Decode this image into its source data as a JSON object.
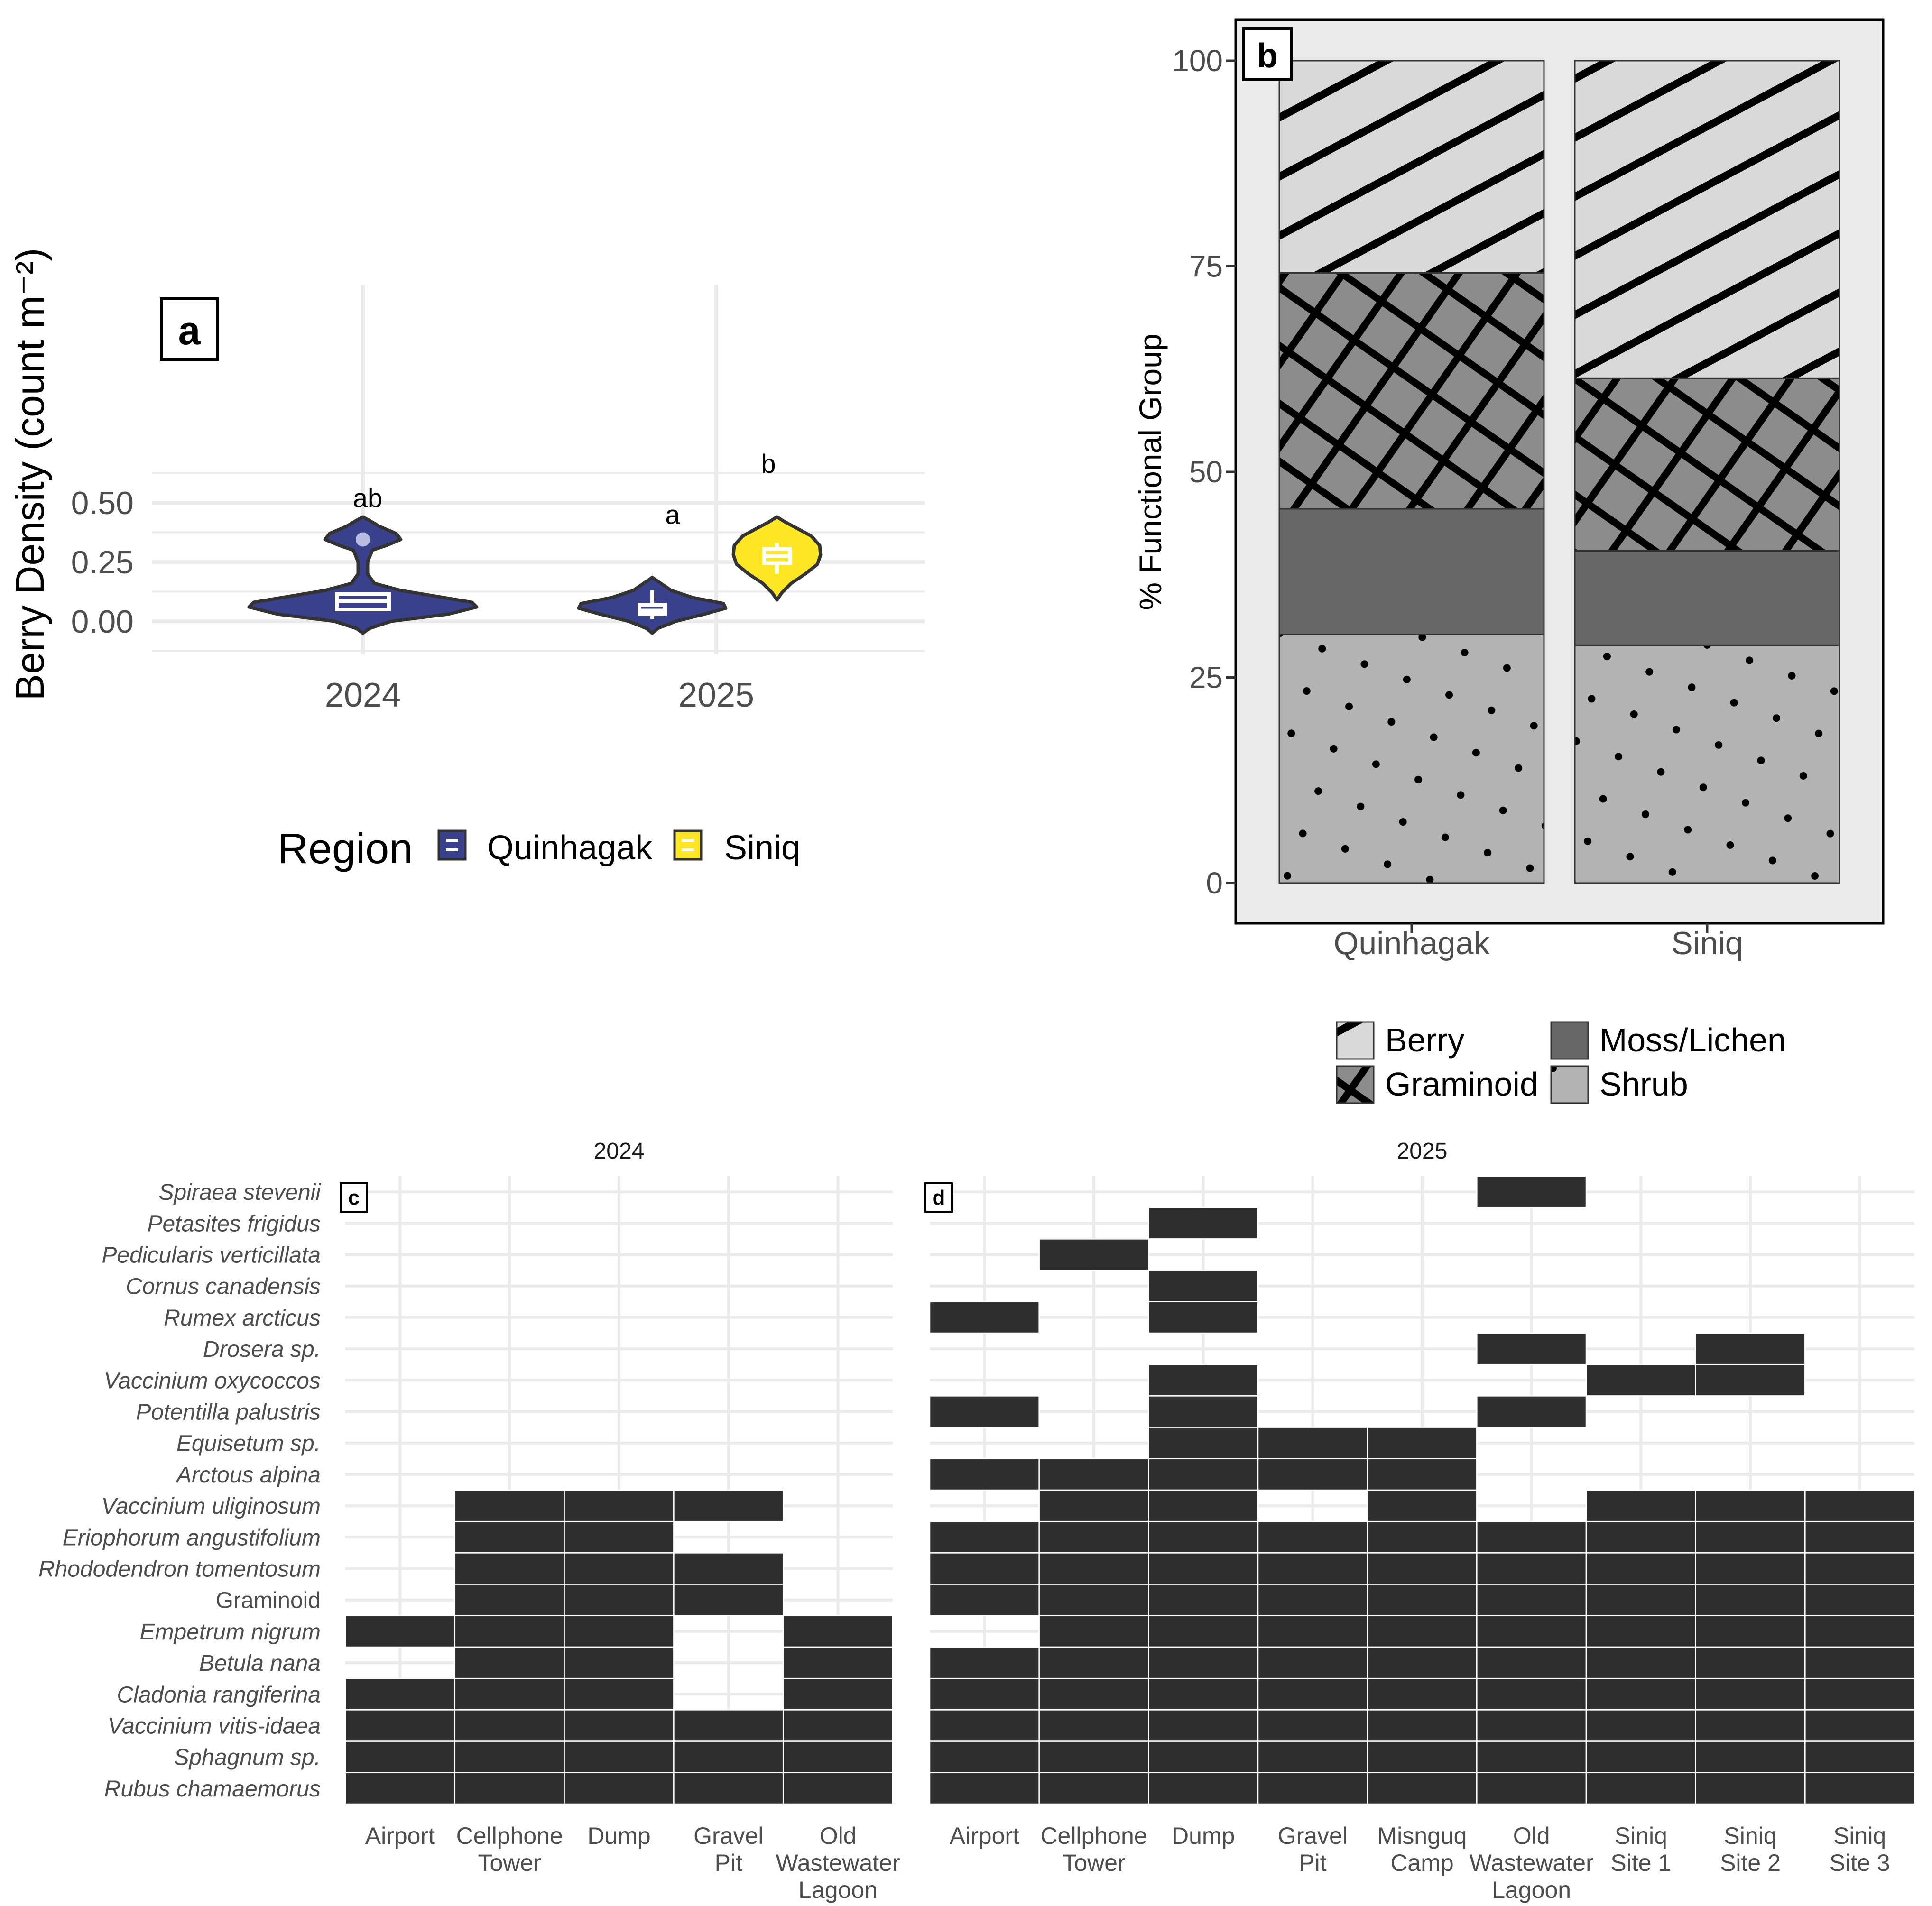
{
  "chart_data": [
    {
      "panel": "a",
      "type": "violin",
      "ylabel": "Berry Density (count m⁻²)",
      "xlabel": "",
      "categories": [
        "2024",
        "2025"
      ],
      "ylim": [
        -0.08,
        0.72
      ],
      "yticks": [
        0.0,
        0.25,
        0.5
      ],
      "ytick_labels": [
        "0.00",
        "0.25",
        "0.50"
      ],
      "grid": true,
      "legend": {
        "title": "Region",
        "position": "bottom",
        "entries": [
          "Quinhagak",
          "Siniq"
        ]
      },
      "colors": {
        "Quinhagak": "#39408c",
        "Siniq": "#fde725",
        "outline": "#333333"
      },
      "groups": [
        {
          "year": "2024",
          "region": "Quinhagak",
          "min": -0.05,
          "max": 0.44,
          "q1": 0.05,
          "median": 0.085,
          "q3": 0.115,
          "whisker_low": 0.05,
          "whisker_high": 0.115,
          "outliers": [
            0.345
          ],
          "letter": "ab",
          "letter_y": 0.525
        },
        {
          "year": "2025",
          "region": "Quinhagak",
          "min": -0.05,
          "max": 0.19,
          "q1": 0.03,
          "median": 0.045,
          "q3": 0.07,
          "whisker_low": 0.01,
          "whisker_high": 0.13,
          "outliers": [],
          "letter": "a",
          "letter_y": 0.455
        },
        {
          "year": "2025",
          "region": "Siniq",
          "min": 0.09,
          "max": 0.44,
          "q1": 0.245,
          "median": 0.275,
          "q3": 0.305,
          "whisker_low": 0.2,
          "whisker_high": 0.33,
          "outliers": [],
          "letter": "b",
          "letter_y": 0.67
        }
      ]
    },
    {
      "panel": "b",
      "type": "bar",
      "stacked": true,
      "ylabel": "% Functional Group",
      "xlabel": "",
      "categories": [
        "Quinhagak",
        "Siniq"
      ],
      "ylim": [
        0,
        100
      ],
      "yticks": [
        0,
        25,
        50,
        75,
        100
      ],
      "series": [
        {
          "name": "Shrub",
          "values": [
            30.2,
            28.9
          ],
          "pattern": "dots",
          "fill": "#b3b3b3"
        },
        {
          "name": "Moss/Lichen",
          "values": [
            15.3,
            11.5
          ],
          "pattern": "none",
          "fill": "#666666"
        },
        {
          "name": "Graminoid",
          "values": [
            28.7,
            21.0
          ],
          "pattern": "crosshatch",
          "fill": "#8c8c8c"
        },
        {
          "name": "Berry",
          "values": [
            25.8,
            38.6
          ],
          "pattern": "stripes",
          "fill": "#d9d9d9"
        }
      ],
      "legend": {
        "position": "bottom",
        "entries": [
          "Berry",
          "Moss/Lichen",
          "Graminoid",
          "Shrub"
        ]
      }
    },
    {
      "panel": "c",
      "type": "heatmap",
      "title": "2024",
      "categories": [
        "Airport",
        "Cellphone Tower",
        "Dump",
        "Gravel Pit",
        "Old Wastewater Lagoon"
      ],
      "category_lines": [
        [
          "Airport"
        ],
        [
          "Cellphone",
          "Tower"
        ],
        [
          "Dump"
        ],
        [
          "Gravel",
          "Pit"
        ],
        [
          "Old",
          "Wastewater",
          "Lagoon"
        ]
      ],
      "presence": {
        "Vaccinium uliginosum": [
          "Cellphone Tower",
          "Dump",
          "Gravel Pit"
        ],
        "Eriophorum angustifolium": [
          "Cellphone Tower",
          "Dump"
        ],
        "Rhododendron tomentosum": [
          "Cellphone Tower",
          "Dump",
          "Gravel Pit"
        ],
        "Graminoid": [
          "Cellphone Tower",
          "Dump",
          "Gravel Pit"
        ],
        "Empetrum nigrum": [
          "Airport",
          "Cellphone Tower",
          "Dump",
          "Old Wastewater Lagoon"
        ],
        "Betula nana": [
          "Cellphone Tower",
          "Dump",
          "Old Wastewater Lagoon"
        ],
        "Cladonia rangiferina": [
          "Airport",
          "Cellphone Tower",
          "Dump",
          "Old Wastewater Lagoon"
        ],
        "Vaccinium vitis-idaea": [
          "Airport",
          "Cellphone Tower",
          "Dump",
          "Gravel Pit",
          "Old Wastewater Lagoon"
        ],
        "Sphagnum sp.": [
          "Airport",
          "Cellphone Tower",
          "Dump",
          "Gravel Pit",
          "Old Wastewater Lagoon"
        ],
        "Rubus chamaemorus": [
          "Airport",
          "Cellphone Tower",
          "Dump",
          "Gravel Pit",
          "Old Wastewater Lagoon"
        ]
      }
    },
    {
      "panel": "d",
      "type": "heatmap",
      "title": "2025",
      "categories": [
        "Airport",
        "Cellphone Tower",
        "Dump",
        "Gravel Pit",
        "Misnguq Camp",
        "Old Wastewater Lagoon",
        "Siniq Site 1",
        "Siniq Site 2",
        "Siniq Site 3"
      ],
      "category_lines": [
        [
          "Airport"
        ],
        [
          "Cellphone",
          "Tower"
        ],
        [
          "Dump"
        ],
        [
          "Gravel",
          "Pit"
        ],
        [
          "Misnguq",
          "Camp"
        ],
        [
          "Old",
          "Wastewater",
          "Lagoon"
        ],
        [
          "Siniq",
          "Site 1"
        ],
        [
          "Siniq",
          "Site 2"
        ],
        [
          "Siniq",
          "Site 3"
        ]
      ],
      "presence": {
        "Spiraea stevenii": [
          "Old Wastewater Lagoon"
        ],
        "Petasites frigidus": [
          "Dump"
        ],
        "Pedicularis verticillata": [
          "Cellphone Tower"
        ],
        "Cornus canadensis": [
          "Dump"
        ],
        "Rumex arcticus": [
          "Airport",
          "Dump"
        ],
        "Drosera sp.": [
          "Old Wastewater Lagoon",
          "Siniq Site 2"
        ],
        "Vaccinium oxycoccos": [
          "Dump",
          "Siniq Site 1",
          "Siniq Site 2"
        ],
        "Potentilla palustris": [
          "Airport",
          "Dump",
          "Old Wastewater Lagoon"
        ],
        "Equisetum sp.": [
          "Dump",
          "Gravel Pit",
          "Misnguq Camp"
        ],
        "Arctous alpina": [
          "Airport",
          "Cellphone Tower",
          "Dump",
          "Gravel Pit",
          "Misnguq Camp"
        ],
        "Vaccinium uliginosum": [
          "Cellphone Tower",
          "Dump",
          "Misnguq Camp",
          "Siniq Site 1",
          "Siniq Site 2",
          "Siniq Site 3"
        ],
        "Eriophorum angustifolium": [
          "Airport",
          "Cellphone Tower",
          "Dump",
          "Gravel Pit",
          "Misnguq Camp",
          "Old Wastewater Lagoon",
          "Siniq Site 1",
          "Siniq Site 2",
          "Siniq Site 3"
        ],
        "Rhododendron tomentosum": [
          "Airport",
          "Cellphone Tower",
          "Dump",
          "Gravel Pit",
          "Misnguq Camp",
          "Old Wastewater Lagoon",
          "Siniq Site 1",
          "Siniq Site 2",
          "Siniq Site 3"
        ],
        "Graminoid": [
          "Airport",
          "Cellphone Tower",
          "Dump",
          "Gravel Pit",
          "Misnguq Camp",
          "Old Wastewater Lagoon",
          "Siniq Site 1",
          "Siniq Site 2",
          "Siniq Site 3"
        ],
        "Empetrum nigrum": [
          "Cellphone Tower",
          "Dump",
          "Gravel Pit",
          "Misnguq Camp",
          "Old Wastewater Lagoon",
          "Siniq Site 1",
          "Siniq Site 2",
          "Siniq Site 3"
        ],
        "Betula nana": [
          "Airport",
          "Cellphone Tower",
          "Dump",
          "Gravel Pit",
          "Misnguq Camp",
          "Old Wastewater Lagoon",
          "Siniq Site 1",
          "Siniq Site 2",
          "Siniq Site 3"
        ],
        "Cladonia rangiferina": [
          "Airport",
          "Cellphone Tower",
          "Dump",
          "Gravel Pit",
          "Misnguq Camp",
          "Old Wastewater Lagoon",
          "Siniq Site 1",
          "Siniq Site 2",
          "Siniq Site 3"
        ],
        "Vaccinium vitis-idaea": [
          "Airport",
          "Cellphone Tower",
          "Dump",
          "Gravel Pit",
          "Misnguq Camp",
          "Old Wastewater Lagoon",
          "Siniq Site 1",
          "Siniq Site 2",
          "Siniq Site 3"
        ],
        "Sphagnum sp.": [
          "Airport",
          "Cellphone Tower",
          "Dump",
          "Gravel Pit",
          "Misnguq Camp",
          "Old Wastewater Lagoon",
          "Siniq Site 1",
          "Siniq Site 2",
          "Siniq Site 3"
        ],
        "Rubus chamaemorus": [
          "Airport",
          "Cellphone Tower",
          "Dump",
          "Gravel Pit",
          "Misnguq Camp",
          "Old Wastewater Lagoon",
          "Siniq Site 1",
          "Siniq Site 2",
          "Siniq Site 3"
        ]
      }
    }
  ],
  "species_order": [
    "Spiraea stevenii",
    "Petasites frigidus",
    "Pedicularis verticillata",
    "Cornus canadensis",
    "Rumex arcticus",
    "Drosera sp.",
    "Vaccinium oxycoccos",
    "Potentilla palustris",
    "Equisetum sp.",
    "Arctous alpina",
    "Vaccinium uliginosum",
    "Eriophorum angustifolium",
    "Rhododendron tomentosum",
    "Graminoid",
    "Empetrum nigrum",
    "Betula nana",
    "Cladonia rangiferina",
    "Vaccinium vitis-idaea",
    "Sphagnum sp.",
    "Rubus chamaemorus"
  ],
  "italic_exceptions": [
    "Graminoid"
  ],
  "panel_labels": {
    "a": "a",
    "b": "b",
    "c": "c",
    "d": "d"
  }
}
